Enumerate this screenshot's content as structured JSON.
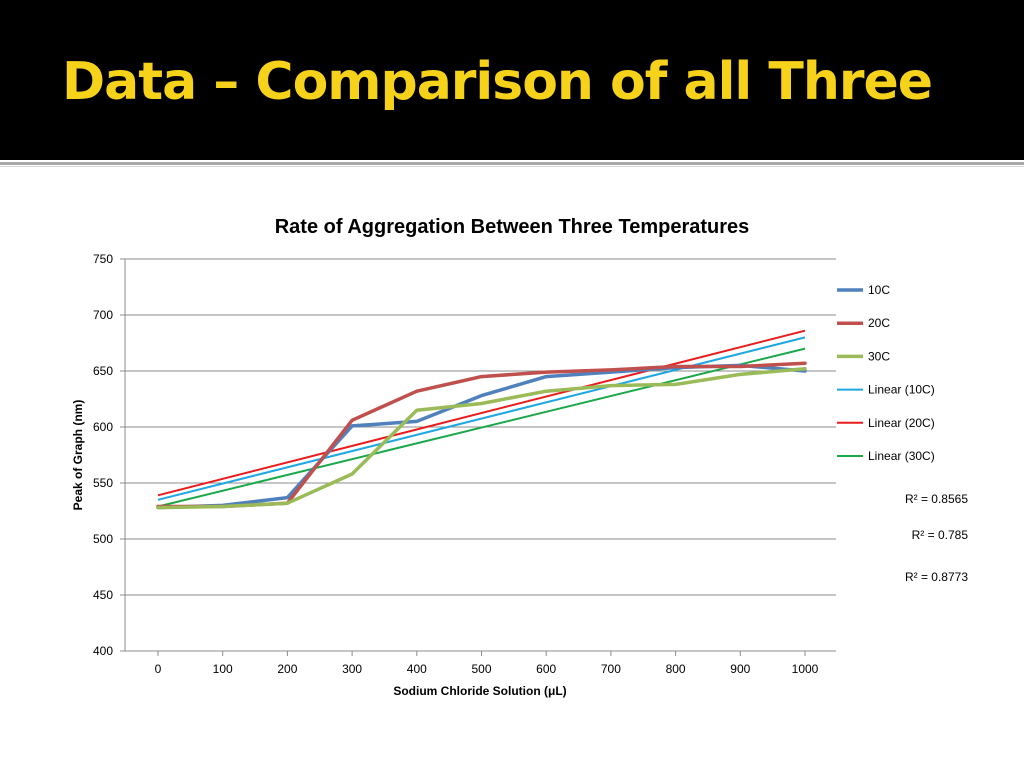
{
  "slide": {
    "title": "Data – Comparison of all Three"
  },
  "chart_data": {
    "type": "line",
    "title": "Rate of Aggregation Between Three Temperatures",
    "xlabel": "Sodium Chloride Solution (μL)",
    "ylabel": "Peak of Graph (nm)",
    "x": [
      0,
      100,
      200,
      300,
      400,
      500,
      600,
      700,
      800,
      900,
      1000
    ],
    "xlim": [
      0,
      1000
    ],
    "ylim": [
      400,
      750
    ],
    "yticks": [
      400,
      450,
      500,
      550,
      600,
      650,
      700,
      750
    ],
    "grid": true,
    "legend_position": "right",
    "series": [
      {
        "name": "10C",
        "color": "#4f81bd",
        "values": [
          528,
          530,
          537,
          601,
          605,
          628,
          645,
          649,
          653,
          655,
          650
        ]
      },
      {
        "name": "20C",
        "color": "#c0504d",
        "values": [
          529,
          529,
          532,
          606,
          632,
          645,
          649,
          651,
          654,
          654,
          657
        ]
      },
      {
        "name": "30C",
        "color": "#9bbb59",
        "values": [
          528,
          529,
          532,
          558,
          615,
          621,
          632,
          637,
          638,
          647,
          652
        ]
      }
    ],
    "trendlines": [
      {
        "name": "Linear (10C)",
        "color": "#1ea7e1",
        "values": [
          535,
          680
        ]
      },
      {
        "name": "Linear (20C)",
        "color": "#e81c1c",
        "values": [
          539,
          686
        ]
      },
      {
        "name": "Linear (30C)",
        "color": "#1aa84a",
        "values": [
          529,
          670
        ]
      }
    ],
    "annotations": [
      "R² = 0.8565",
      "R² = 0.785",
      "R² = 0.8773"
    ]
  }
}
